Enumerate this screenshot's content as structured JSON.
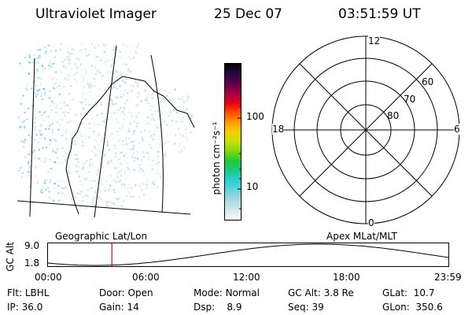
{
  "header": {
    "title": "Ultraviolet Imager",
    "date": "25 Dec 07",
    "time": "03:51:59 UT"
  },
  "colorbar": {
    "label": "photon cm⁻²s⁻¹",
    "ticks": [
      "100",
      "10"
    ],
    "colors": [
      "#ffffff",
      "#d6e6ea",
      "#a9dbe2",
      "#6ad3df",
      "#2ccfd4",
      "#17cc86",
      "#1ec93c",
      "#7ad80f",
      "#c8e000",
      "#f2d100",
      "#ff9a00",
      "#ff4a00",
      "#e0001b",
      "#a00040",
      "#5a004f",
      "#240a3a",
      "#000000"
    ]
  },
  "polar": {
    "mlt_labels": {
      "top": "12",
      "left": "18",
      "right": "6",
      "bottom": "0"
    },
    "lat_labels": [
      "60",
      "70",
      "80"
    ]
  },
  "labels": {
    "geographic": "Geographic Lat/Lon",
    "apex": "Apex MLat/MLT"
  },
  "altitude": {
    "axis_title": "GC Alt",
    "ticks": [
      "9.0",
      "1.8"
    ],
    "time_ticks": [
      "00:00",
      "06:00",
      "12:00",
      "18:00",
      "23:59"
    ],
    "marker_time_hours": 3.87,
    "marker_color": "#e00000"
  },
  "footer": {
    "rows": [
      [
        {
          "label": "Flt:",
          "value": "LBHL"
        },
        {
          "label": "Door:",
          "value": "Open"
        },
        {
          "label": "Mode:",
          "value": "Normal"
        },
        {
          "label": "GC Alt:",
          "value": "3.8 Re"
        },
        {
          "label": "GLat:",
          "value": "10.7"
        }
      ],
      [
        {
          "label": "IP:",
          "value": "36.0"
        },
        {
          "label": "Gain:",
          "value": "14"
        },
        {
          "label": "Dsp:",
          "value": "8.9"
        },
        {
          "label": "Seq:",
          "value": "39"
        },
        {
          "label": "GLon:",
          "value": "350.6"
        }
      ]
    ]
  }
}
